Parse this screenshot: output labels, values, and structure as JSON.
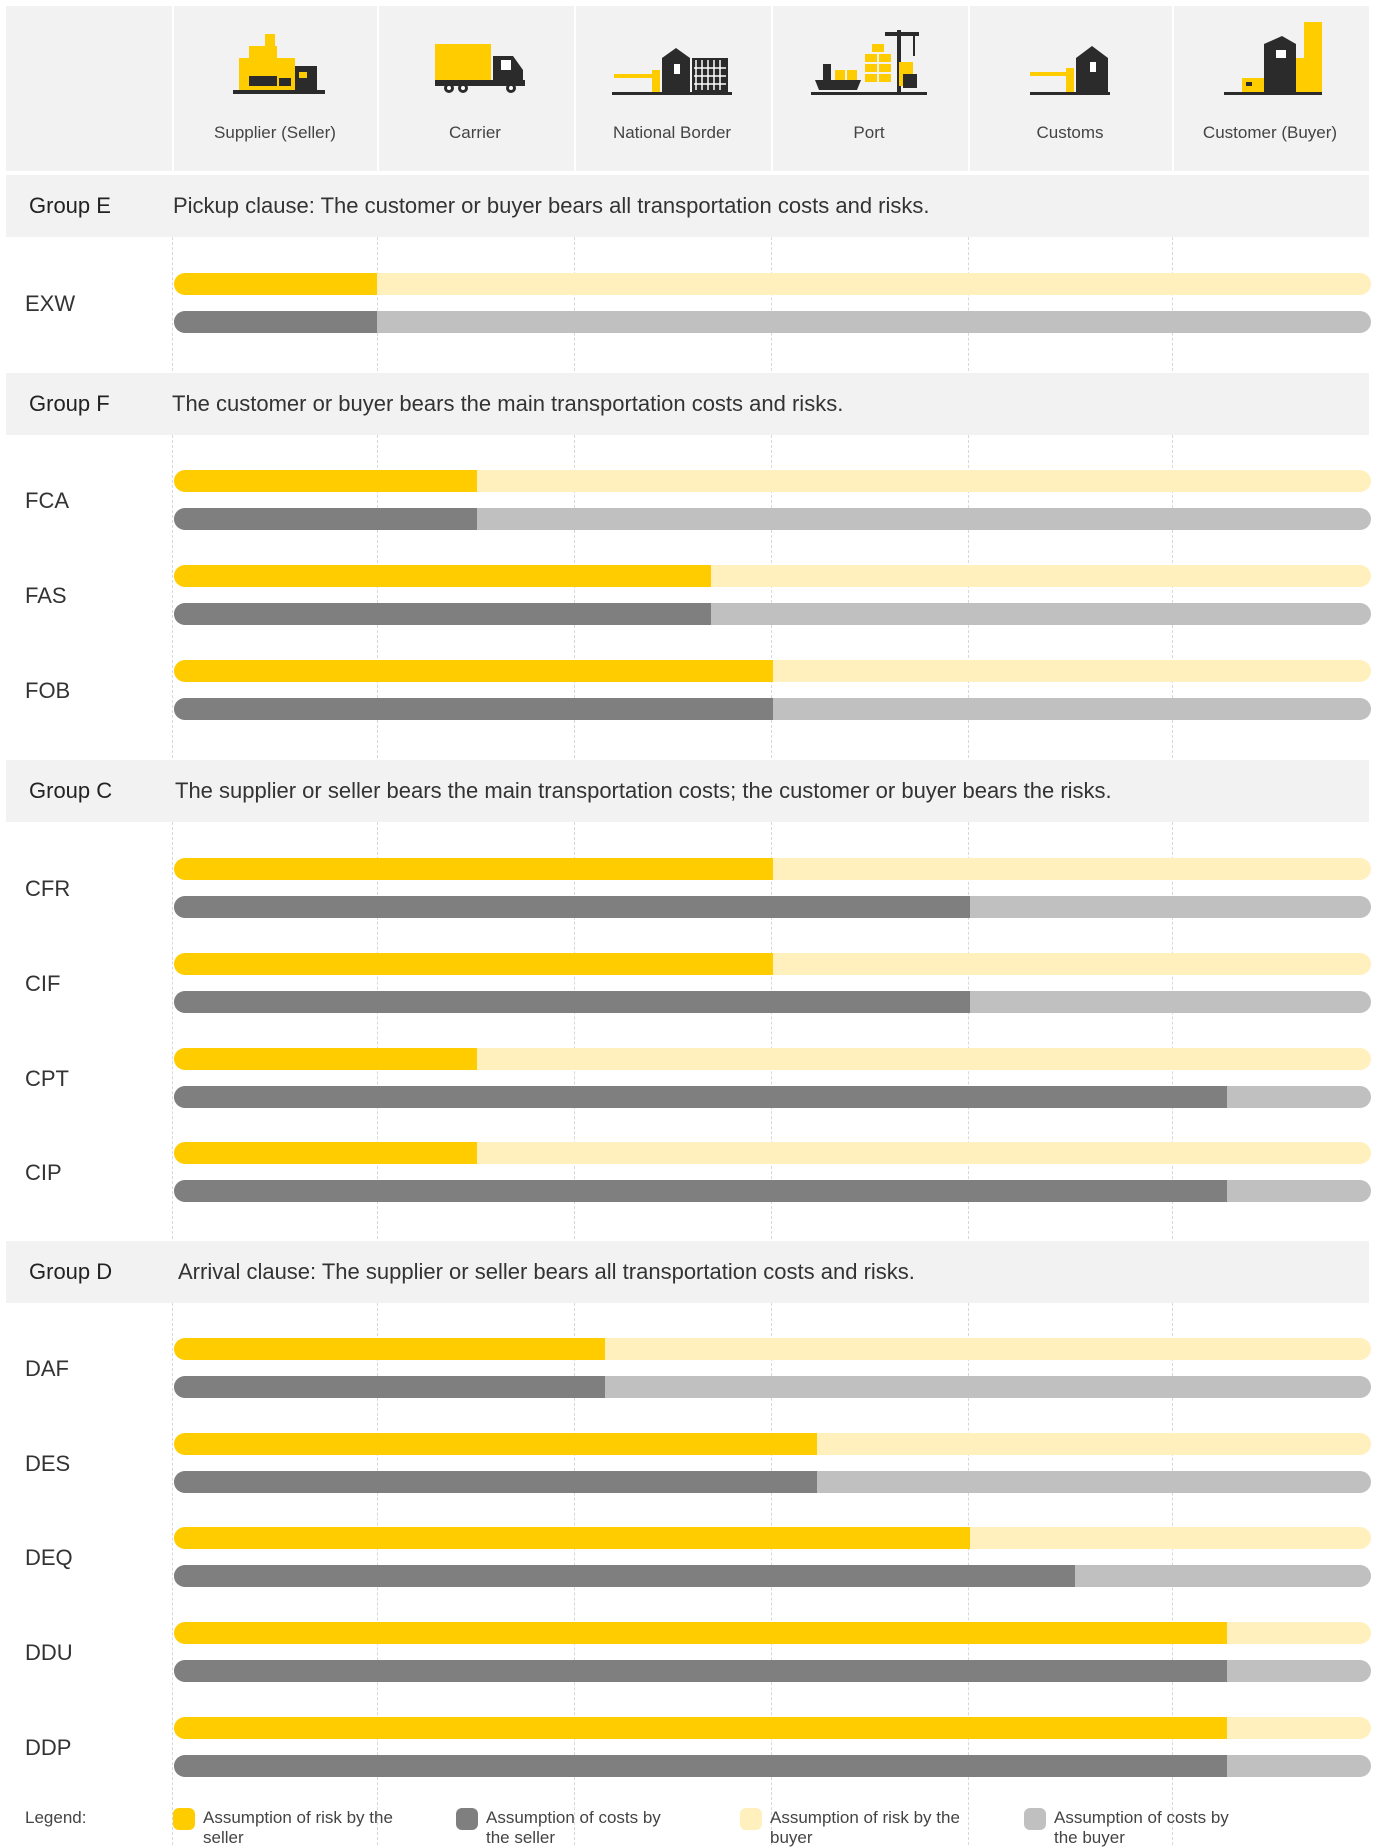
{
  "columns": [
    {
      "label": "Supplier (Seller)",
      "icon": "factory-icon"
    },
    {
      "label": "Carrier",
      "icon": "truck-icon"
    },
    {
      "label": "National Border",
      "icon": "border-gate-icon"
    },
    {
      "label": "Port",
      "icon": "port-crane-ship-icon"
    },
    {
      "label": "Customs",
      "icon": "customs-house-icon"
    },
    {
      "label": "Customer (Buyer)",
      "icon": "warehouse-icon"
    }
  ],
  "colors": {
    "risk_seller": "#ffcc00",
    "risk_buyer": "#fff0bd",
    "cost_seller": "#7f7f7f",
    "cost_buyer": "#c0c0c0",
    "icon_dark": "#2b2b2b",
    "icon_accent": "#ffcc00"
  },
  "groups": [
    {
      "name": "Group E",
      "description": "Pickup clause: The customer or buyer bears all transportation costs and risks.",
      "terms": [
        {
          "code": "EXW",
          "risk_seller": 0.17,
          "cost_seller": 0.17
        }
      ]
    },
    {
      "name": "Group F",
      "description": "The customer or buyer bears the main transportation costs and risks.",
      "terms": [
        {
          "code": "FCA",
          "risk_seller": 0.253,
          "cost_seller": 0.253
        },
        {
          "code": "FAS",
          "risk_seller": 0.449,
          "cost_seller": 0.449
        },
        {
          "code": "FOB",
          "risk_seller": 0.5,
          "cost_seller": 0.5
        }
      ]
    },
    {
      "name": "Group C",
      "description": "The supplier or seller bears the main transportation costs; the customer or buyer bears the risks.",
      "terms": [
        {
          "code": "CFR",
          "risk_seller": 0.5,
          "cost_seller": 0.665
        },
        {
          "code": "CIF",
          "risk_seller": 0.5,
          "cost_seller": 0.665
        },
        {
          "code": "CPT",
          "risk_seller": 0.253,
          "cost_seller": 0.88
        },
        {
          "code": "CIP",
          "risk_seller": 0.253,
          "cost_seller": 0.88
        }
      ]
    },
    {
      "name": "Group D",
      "description": "Arrival clause: The supplier or seller bears all transportation costs and risks.",
      "terms": [
        {
          "code": "DAF",
          "risk_seller": 0.36,
          "cost_seller": 0.36
        },
        {
          "code": "DES",
          "risk_seller": 0.537,
          "cost_seller": 0.537
        },
        {
          "code": "DEQ",
          "risk_seller": 0.665,
          "cost_seller": 0.753
        },
        {
          "code": "DDU",
          "risk_seller": 0.88,
          "cost_seller": 0.88
        },
        {
          "code": "DDP",
          "risk_seller": 0.88,
          "cost_seller": 0.88
        }
      ]
    }
  ],
  "legend": {
    "label": "Legend:",
    "items": [
      {
        "key": "risk_seller",
        "text": "Assumption of risk by the seller"
      },
      {
        "key": "cost_seller",
        "text": "Assumption of costs by the seller"
      },
      {
        "key": "risk_buyer",
        "text": "Assumption of risk by the buyer"
      },
      {
        "key": "cost_buyer",
        "text": "Assumption of costs by the buyer"
      }
    ]
  }
}
